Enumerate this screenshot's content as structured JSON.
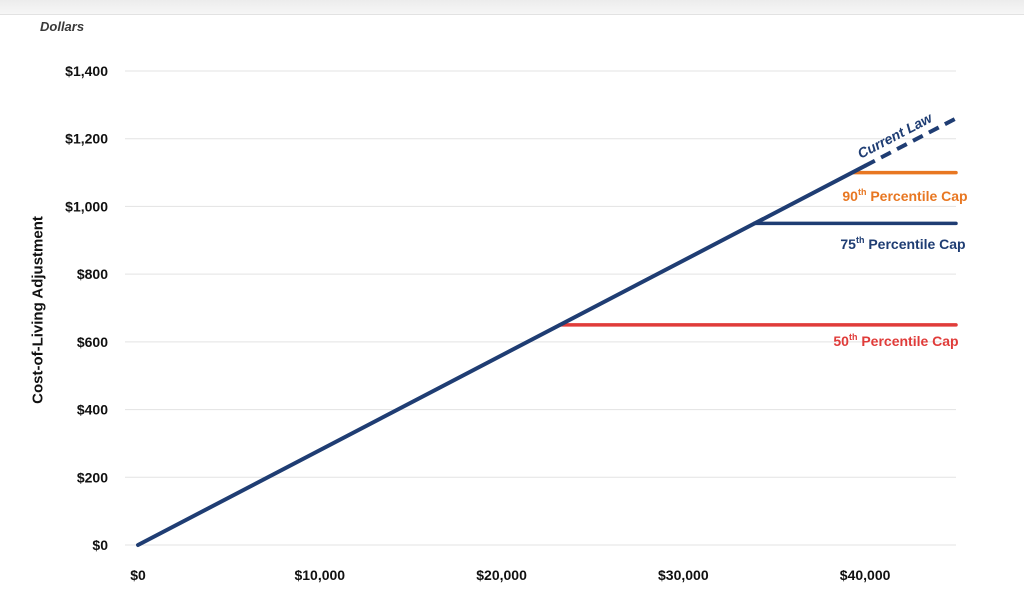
{
  "chart_data": {
    "type": "line",
    "units_label": "Dollars",
    "ylabel": "Cost-of-Living Adjustment",
    "xlabel": "",
    "xlim": [
      0,
      45000
    ],
    "ylim": [
      0,
      1400
    ],
    "x_ticks": [
      0,
      10000,
      20000,
      30000,
      40000
    ],
    "x_tick_labels": [
      "$0",
      "$10,000",
      "$20,000",
      "$30,000",
      "$40,000"
    ],
    "y_ticks": [
      0,
      200,
      400,
      600,
      800,
      1000,
      1200,
      1400
    ],
    "y_tick_labels": [
      "$0",
      "$200",
      "$400",
      "$600",
      "$800",
      "$1,000",
      "$1,200",
      "$1,400"
    ],
    "grid": "horizontal",
    "series": [
      {
        "name": "Current Law",
        "color": "#1f3d73",
        "points": [
          [
            0,
            0
          ],
          [
            40000,
            1120
          ]
        ],
        "dashed_points": [
          [
            40000,
            1120
          ],
          [
            45000,
            1260
          ]
        ]
      },
      {
        "label_number": "90",
        "label_sup": "th",
        "label_text": " Percentile Cap",
        "color": "#e87722",
        "cap": 1100,
        "start_x": 39300,
        "end_x": 45000
      },
      {
        "label_number": "75",
        "label_sup": "th",
        "label_text": " Percentile Cap",
        "color": "#1f3d73",
        "cap": 950,
        "start_x": 33900,
        "end_x": 45000
      },
      {
        "label_number": "50",
        "label_sup": "th",
        "label_text": " Percentile Cap",
        "color": "#e03c3a",
        "cap": 650,
        "start_x": 23200,
        "end_x": 45000
      }
    ]
  }
}
